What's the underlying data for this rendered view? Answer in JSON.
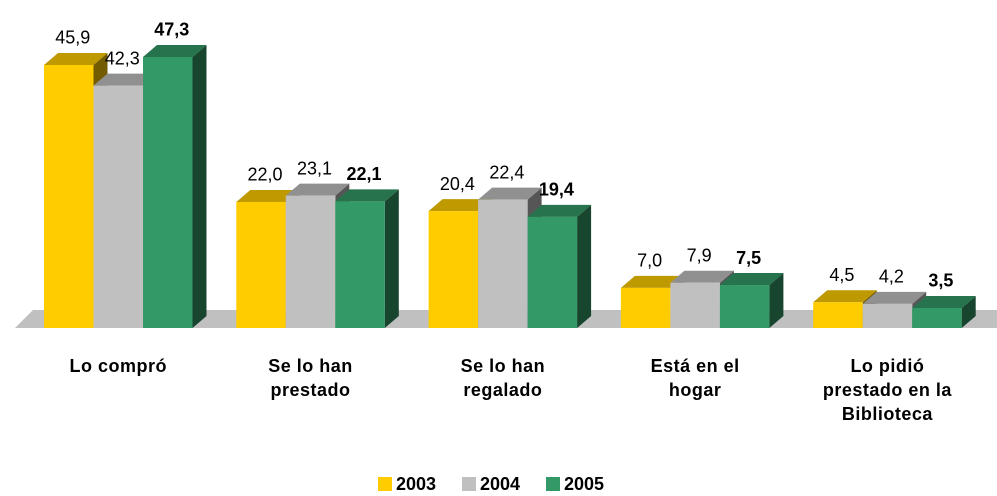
{
  "chart_data": {
    "type": "bar3d",
    "categories": [
      "Lo compró",
      "Se lo han prestado",
      "Se lo han regalado",
      "Está en el hogar",
      "Lo pidió prestado en la Biblioteca"
    ],
    "series": [
      {
        "name": "2003",
        "color": "#ffcc00",
        "values": [
          45.9,
          22.0,
          20.4,
          7.0,
          4.5
        ],
        "value_labels": [
          "45,9",
          "22,0",
          "20,4",
          "7,0",
          "4,5"
        ]
      },
      {
        "name": "2004",
        "color": "#c0c0c0",
        "values": [
          42.3,
          23.1,
          22.4,
          7.9,
          4.2
        ],
        "value_labels": [
          "42,3",
          "23,1",
          "22,4",
          "7,9",
          "4,2"
        ]
      },
      {
        "name": "2005",
        "color": "#339966",
        "values": [
          47.3,
          22.1,
          19.4,
          7.5,
          3.5
        ],
        "value_labels": [
          "47,3",
          "22,1",
          "19,4",
          "7,5",
          "3,5"
        ]
      }
    ],
    "legend": "bottom"
  }
}
